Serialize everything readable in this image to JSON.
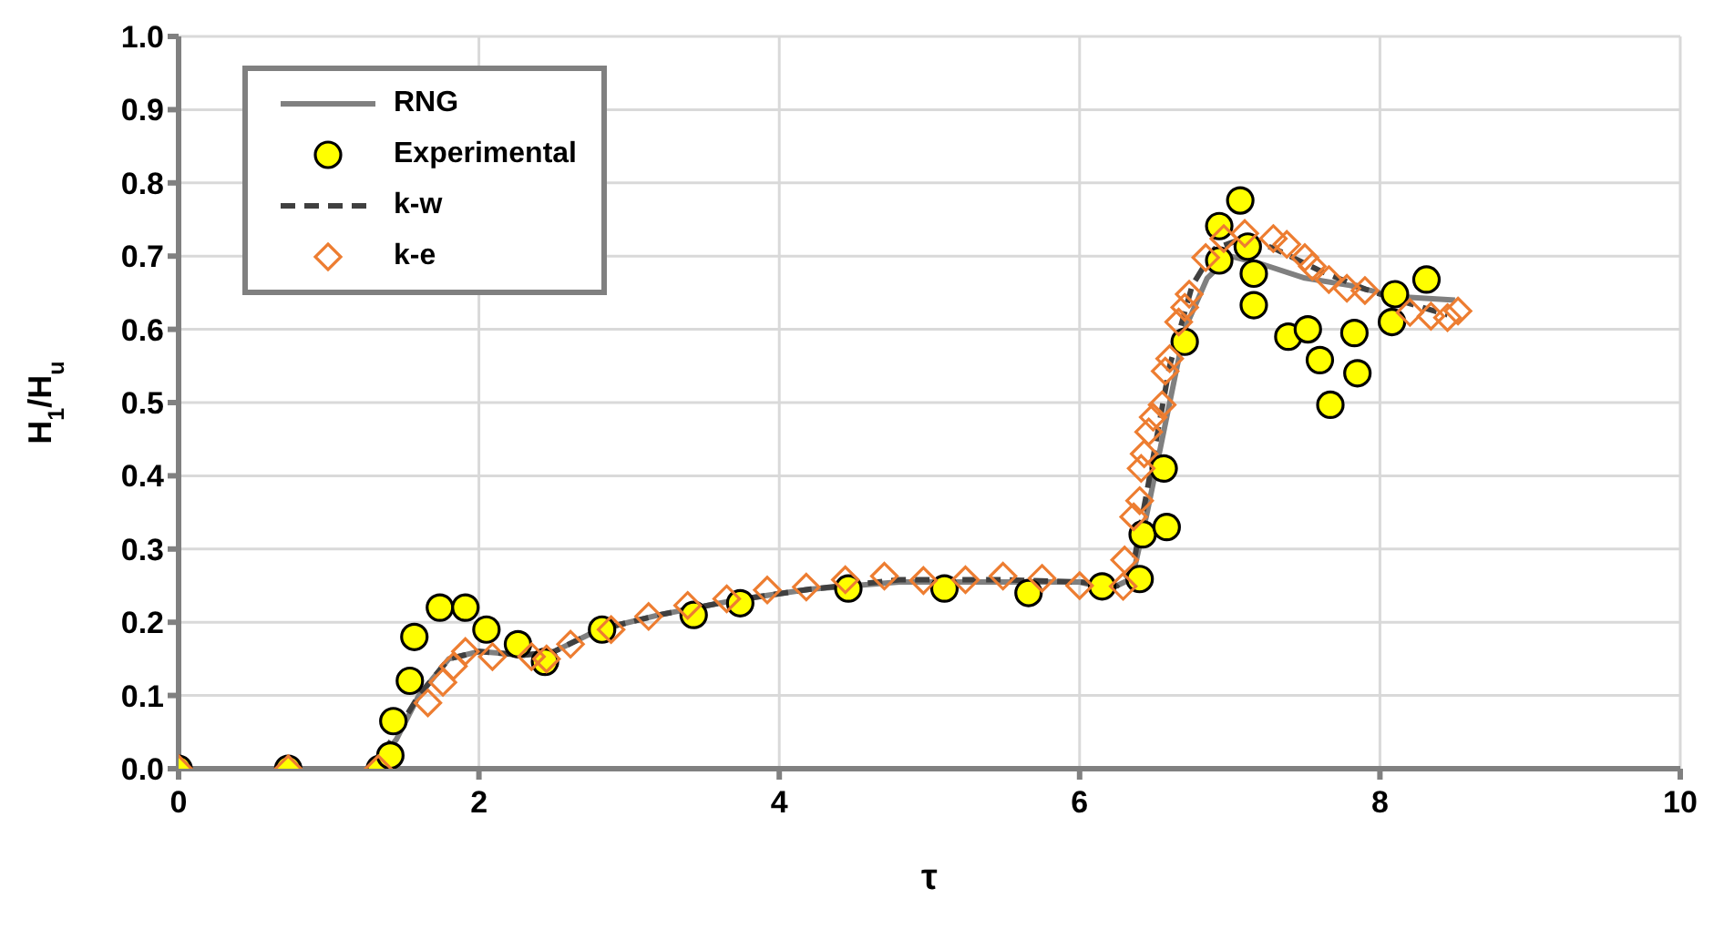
{
  "chart_data": {
    "type": "line",
    "xlabel": "τ",
    "ylabel": "H$_{1}$/H$_{u}$",
    "xlim": [
      0,
      10
    ],
    "xticks": [
      0,
      2,
      4,
      6,
      8,
      10
    ],
    "ylim": [
      0,
      1
    ],
    "yticks": [
      {
        "value": 0,
        "label": "0.0"
      },
      0.1,
      0.2,
      0.3,
      0.4,
      0.5,
      0.6,
      0.7,
      0.8,
      0.9,
      {
        "value": 1,
        "label": "1.0"
      }
    ],
    "grid": true,
    "legend": "top left",
    "series": [
      {
        "name": "RNG",
        "color": "#808080",
        "line_style": "solid",
        "marker": "none",
        "x": [
          0,
          1.3,
          1.45,
          1.6,
          1.8,
          2.0,
          2.3,
          2.5,
          2.8,
          3.2,
          3.7,
          4.2,
          4.8,
          5.5,
          6.0,
          6.2,
          6.35,
          6.45,
          6.55,
          6.7,
          6.85,
          7.0,
          7.2,
          7.5,
          7.8,
          8.1,
          8.5
        ],
        "values": [
          0,
          0,
          0.04,
          0.1,
          0.15,
          0.16,
          0.155,
          0.16,
          0.19,
          0.21,
          0.23,
          0.245,
          0.255,
          0.255,
          0.255,
          0.245,
          0.26,
          0.35,
          0.45,
          0.6,
          0.67,
          0.7,
          0.69,
          0.67,
          0.66,
          0.645,
          0.64
        ]
      },
      {
        "name": "Experimental",
        "type": "scatter",
        "color": "#ffff00",
        "marker": "circle",
        "x": [
          0,
          0.73,
          1.34,
          1.41,
          1.43,
          1.54,
          1.57,
          1.74,
          1.91,
          2.05,
          2.26,
          2.44,
          2.82,
          3.43,
          3.74,
          4.46,
          5.1,
          5.66,
          6.15,
          6.4,
          6.42,
          6.58,
          6.56,
          6.7,
          6.93,
          6.93,
          7.07,
          7.12,
          7.16,
          7.16,
          7.39,
          7.52,
          7.6,
          7.67,
          7.83,
          7.85,
          8.08,
          8.1,
          8.31
        ],
        "values": [
          0,
          0,
          0,
          0.018,
          0.065,
          0.12,
          0.18,
          0.22,
          0.22,
          0.19,
          0.17,
          0.146,
          0.19,
          0.21,
          0.226,
          0.246,
          0.246,
          0.24,
          0.249,
          0.259,
          0.32,
          0.33,
          0.41,
          0.583,
          0.694,
          0.741,
          0.776,
          0.713,
          0.676,
          0.633,
          0.59,
          0.6,
          0.558,
          0.497,
          0.595,
          0.54,
          0.61,
          0.648,
          0.668
        ]
      },
      {
        "name": "k-w",
        "color": "#404040",
        "line_style": "dashed",
        "marker": "none",
        "x": [
          0,
          1.3,
          1.45,
          1.6,
          1.8,
          2.0,
          2.3,
          2.5,
          2.8,
          3.2,
          3.7,
          4.2,
          4.8,
          5.5,
          6.0,
          6.25,
          6.35,
          6.45,
          6.6,
          6.75,
          6.9,
          7.1,
          7.3,
          7.6,
          7.9,
          8.2,
          8.45
        ],
        "values": [
          0,
          0,
          0.05,
          0.1,
          0.15,
          0.16,
          0.155,
          0.16,
          0.19,
          0.21,
          0.23,
          0.245,
          0.258,
          0.258,
          0.255,
          0.25,
          0.27,
          0.38,
          0.55,
          0.66,
          0.71,
          0.725,
          0.71,
          0.68,
          0.655,
          0.635,
          0.62
        ]
      },
      {
        "name": "k-e",
        "type": "scatter",
        "color": "#ed7d31",
        "marker": "diamond",
        "x": [
          0,
          0.73,
          1.33,
          1.66,
          1.76,
          1.83,
          1.91,
          2.09,
          2.35,
          2.45,
          2.61,
          2.88,
          3.13,
          3.39,
          3.65,
          3.92,
          4.18,
          4.44,
          4.7,
          4.96,
          5.24,
          5.49,
          5.75,
          6.0,
          6.29,
          6.3,
          6.36,
          6.4,
          6.41,
          6.43,
          6.46,
          6.49,
          6.55,
          6.57,
          6.6,
          6.66,
          6.7,
          6.73,
          6.84,
          6.96,
          7.1,
          7.29,
          7.38,
          7.5,
          7.55,
          7.66,
          7.78,
          7.9,
          8.2,
          8.34,
          8.45,
          8.52
        ],
        "values": [
          0,
          0,
          0,
          0.09,
          0.118,
          0.14,
          0.16,
          0.153,
          0.153,
          0.15,
          0.17,
          0.19,
          0.208,
          0.223,
          0.232,
          0.244,
          0.248,
          0.258,
          0.263,
          0.257,
          0.258,
          0.263,
          0.26,
          0.25,
          0.249,
          0.285,
          0.344,
          0.366,
          0.41,
          0.43,
          0.46,
          0.48,
          0.497,
          0.543,
          0.56,
          0.61,
          0.63,
          0.648,
          0.698,
          0.724,
          0.731,
          0.724,
          0.716,
          0.698,
          0.686,
          0.668,
          0.656,
          0.653,
          0.623,
          0.618,
          0.616,
          0.625
        ]
      }
    ]
  }
}
